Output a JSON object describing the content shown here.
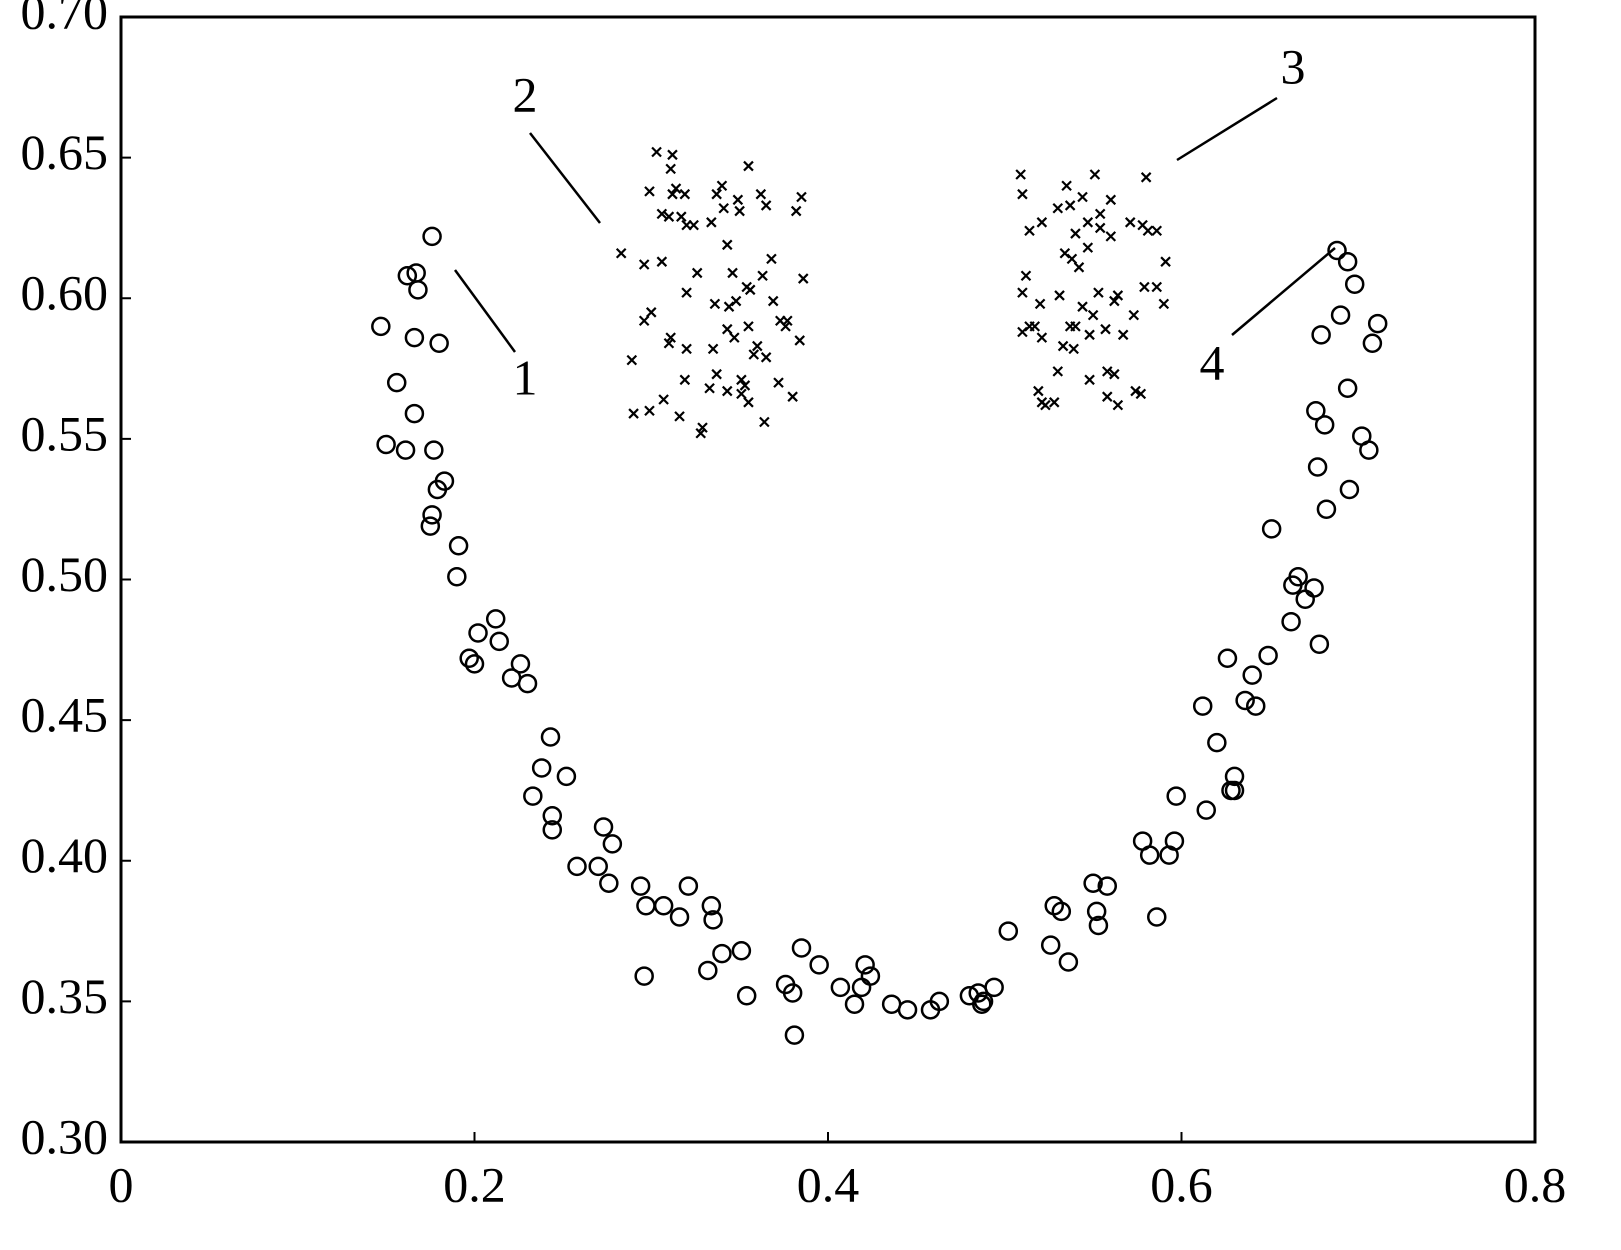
{
  "chart_data": {
    "type": "scatter",
    "xlim": [
      0,
      0.8
    ],
    "ylim": [
      0.3,
      0.7
    ],
    "xticks": [
      {
        "value": 0,
        "label": "0"
      },
      0.2,
      0.4,
      0.6,
      0.8
    ],
    "yticks": [
      {
        "value": 0.3,
        "label": "0.30"
      },
      0.35,
      {
        "value": 0.4,
        "label": "0.40"
      },
      0.45,
      {
        "value": 0.5,
        "label": "0.50"
      },
      0.55,
      {
        "value": 0.6,
        "label": "0.60"
      },
      0.65,
      {
        "value": 0.7,
        "label": "0.70"
      }
    ],
    "grid": false,
    "annotations": [
      "1",
      "2",
      "3",
      "4"
    ],
    "series": [
      {
        "marker": "circle",
        "color": "#000000",
        "x": [
          0.176,
          0.162,
          0.167,
          0.168,
          0.147,
          0.166,
          0.18,
          0.156,
          0.166,
          0.15,
          0.161,
          0.177,
          0.183,
          0.179,
          0.176,
          0.175,
          0.191,
          0.19,
          0.212,
          0.202,
          0.197,
          0.2,
          0.214,
          0.226,
          0.221,
          0.23,
          0.243,
          0.238,
          0.252,
          0.233,
          0.244,
          0.244,
          0.273,
          0.278,
          0.258,
          0.27,
          0.276,
          0.294,
          0.297,
          0.307,
          0.321,
          0.316,
          0.334,
          0.335,
          0.34,
          0.332,
          0.351,
          0.354,
          0.296,
          0.385,
          0.395,
          0.376,
          0.38,
          0.381,
          0.407,
          0.415,
          0.421,
          0.424,
          0.419,
          0.436,
          0.445,
          0.458,
          0.463,
          0.48,
          0.485,
          0.487,
          0.488,
          0.494,
          0.502,
          0.526,
          0.528,
          0.532,
          0.536,
          0.55,
          0.552,
          0.553,
          0.558,
          0.578,
          0.582,
          0.593,
          0.596,
          0.586,
          0.597,
          0.614,
          0.612,
          0.62,
          0.626,
          0.628,
          0.63,
          0.63,
          0.636,
          0.64,
          0.642,
          0.649,
          0.651,
          0.662,
          0.663,
          0.666,
          0.67,
          0.675,
          0.678,
          0.677,
          0.676,
          0.681,
          0.682,
          0.679,
          0.69,
          0.688,
          0.694,
          0.698,
          0.694,
          0.695,
          0.702,
          0.706,
          0.708,
          0.711
        ],
        "values": [
          0.622,
          0.608,
          0.609,
          0.603,
          0.59,
          0.586,
          0.584,
          0.57,
          0.559,
          0.548,
          0.546,
          0.546,
          0.535,
          0.532,
          0.523,
          0.519,
          0.512,
          0.501,
          0.486,
          0.481,
          0.472,
          0.47,
          0.478,
          0.47,
          0.465,
          0.463,
          0.444,
          0.433,
          0.43,
          0.423,
          0.416,
          0.411,
          0.412,
          0.406,
          0.398,
          0.398,
          0.392,
          0.391,
          0.384,
          0.384,
          0.391,
          0.38,
          0.384,
          0.379,
          0.367,
          0.361,
          0.368,
          0.352,
          0.359,
          0.369,
          0.363,
          0.356,
          0.353,
          0.338,
          0.355,
          0.349,
          0.363,
          0.359,
          0.355,
          0.349,
          0.347,
          0.347,
          0.35,
          0.352,
          0.353,
          0.349,
          0.35,
          0.355,
          0.375,
          0.37,
          0.384,
          0.382,
          0.364,
          0.392,
          0.382,
          0.377,
          0.391,
          0.407,
          0.402,
          0.402,
          0.407,
          0.38,
          0.423,
          0.418,
          0.455,
          0.442,
          0.472,
          0.425,
          0.43,
          0.425,
          0.457,
          0.466,
          0.455,
          0.473,
          0.518,
          0.485,
          0.498,
          0.501,
          0.493,
          0.497,
          0.477,
          0.54,
          0.56,
          0.555,
          0.525,
          0.587,
          0.594,
          0.617,
          0.613,
          0.605,
          0.568,
          0.532,
          0.551,
          0.546,
          0.584,
          0.591
        ]
      },
      {
        "marker": "cross",
        "color": "#000000",
        "x": [
          0.283,
          0.29,
          0.289,
          0.299,
          0.3,
          0.296,
          0.299,
          0.296,
          0.303,
          0.306,
          0.306,
          0.307,
          0.31,
          0.311,
          0.312,
          0.312,
          0.314,
          0.31,
          0.311,
          0.317,
          0.316,
          0.32,
          0.319,
          0.32,
          0.32,
          0.319,
          0.324,
          0.326,
          0.328,
          0.329,
          0.334,
          0.333,
          0.335,
          0.337,
          0.336,
          0.337,
          0.34,
          0.341,
          0.343,
          0.343,
          0.343,
          0.344,
          0.346,
          0.347,
          0.348,
          0.349,
          0.351,
          0.35,
          0.351,
          0.353,
          0.354,
          0.355,
          0.355,
          0.356,
          0.355,
          0.358,
          0.36,
          0.362,
          0.363,
          0.365,
          0.364,
          0.365,
          0.368,
          0.369,
          0.372,
          0.373,
          0.376,
          0.377,
          0.38,
          0.382,
          0.384,
          0.385,
          0.386,
          0.509,
          0.51,
          0.51,
          0.512,
          0.51,
          0.514,
          0.514,
          0.517,
          0.521,
          0.52,
          0.519,
          0.521,
          0.521,
          0.523,
          0.528,
          0.531,
          0.53,
          0.53,
          0.534,
          0.535,
          0.533,
          0.537,
          0.537,
          0.538,
          0.54,
          0.54,
          0.539,
          0.542,
          0.544,
          0.544,
          0.547,
          0.548,
          0.548,
          0.547,
          0.551,
          0.55,
          0.553,
          0.554,
          0.554,
          0.557,
          0.56,
          0.56,
          0.558,
          0.558,
          0.562,
          0.562,
          0.564,
          0.564,
          0.567,
          0.571,
          0.573,
          0.574,
          0.577,
          0.578,
          0.58,
          0.581,
          0.586,
          0.579,
          0.586,
          0.59,
          0.591
        ],
        "values": [
          0.616,
          0.559,
          0.578,
          0.56,
          0.595,
          0.592,
          0.638,
          0.612,
          0.652,
          0.63,
          0.613,
          0.564,
          0.629,
          0.646,
          0.651,
          0.637,
          0.639,
          0.584,
          0.586,
          0.629,
          0.558,
          0.626,
          0.637,
          0.602,
          0.582,
          0.571,
          0.626,
          0.609,
          0.552,
          0.554,
          0.627,
          0.568,
          0.582,
          0.637,
          0.598,
          0.573,
          0.64,
          0.632,
          0.567,
          0.589,
          0.619,
          0.597,
          0.609,
          0.586,
          0.599,
          0.635,
          0.566,
          0.631,
          0.571,
          0.569,
          0.604,
          0.563,
          0.647,
          0.603,
          0.59,
          0.58,
          0.583,
          0.637,
          0.608,
          0.633,
          0.556,
          0.579,
          0.614,
          0.599,
          0.57,
          0.592,
          0.59,
          0.592,
          0.565,
          0.631,
          0.585,
          0.636,
          0.607,
          0.644,
          0.637,
          0.602,
          0.608,
          0.588,
          0.59,
          0.624,
          0.59,
          0.627,
          0.598,
          0.567,
          0.586,
          0.563,
          0.562,
          0.563,
          0.601,
          0.632,
          0.574,
          0.616,
          0.64,
          0.583,
          0.59,
          0.633,
          0.614,
          0.59,
          0.623,
          0.582,
          0.611,
          0.636,
          0.597,
          0.618,
          0.587,
          0.571,
          0.627,
          0.644,
          0.594,
          0.602,
          0.63,
          0.625,
          0.589,
          0.635,
          0.622,
          0.574,
          0.565,
          0.599,
          0.573,
          0.562,
          0.601,
          0.587,
          0.627,
          0.594,
          0.567,
          0.566,
          0.626,
          0.643,
          0.624,
          0.624,
          0.604,
          0.604,
          0.598,
          0.613
        ]
      }
    ]
  }
}
